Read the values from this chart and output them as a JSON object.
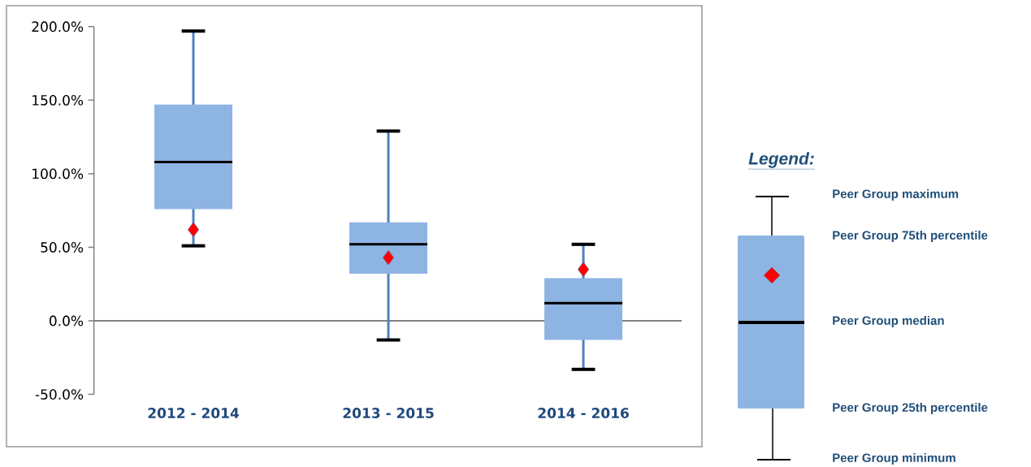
{
  "chart_data": {
    "type": "box",
    "categories": [
      "2012 - 2014",
      "2013 - 2015",
      "2014 - 2016"
    ],
    "series": [
      {
        "type": "box",
        "color": "#8eb4e3",
        "boxes": [
          {
            "low": 51,
            "q1": 76,
            "median": 108,
            "q3": 147,
            "high": 197
          },
          {
            "low": -13,
            "q1": 32,
            "median": 52,
            "q3": 67,
            "high": 129
          },
          {
            "low": -33,
            "q1": -13,
            "median": 12,
            "q3": 29,
            "high": 52
          }
        ]
      },
      {
        "type": "scatter",
        "color": "#ff0000",
        "x": [
          "2012 - 2014",
          "2013 - 2015",
          "2014 - 2016"
        ],
        "values": [
          62,
          43,
          35
        ]
      }
    ],
    "marker": "diamond",
    "ylim": [
      -50,
      200
    ],
    "yticks": [
      {
        "value": -50,
        "label": "-50.0%"
      },
      {
        "value": 0,
        "label": "0.0%"
      },
      {
        "value": 50,
        "label": "50.0%"
      },
      {
        "value": 100,
        "label": "100.0%"
      },
      {
        "value": 150,
        "label": "150.0%"
      },
      {
        "value": 200,
        "label": "200.0%"
      }
    ],
    "annotations": [
      "Legend:",
      "Peer Group maximum",
      "Peer Group 75th percentile",
      "Peer Group median",
      "Peer Group 25th percentile",
      "Peer Group minimum"
    ]
  }
}
